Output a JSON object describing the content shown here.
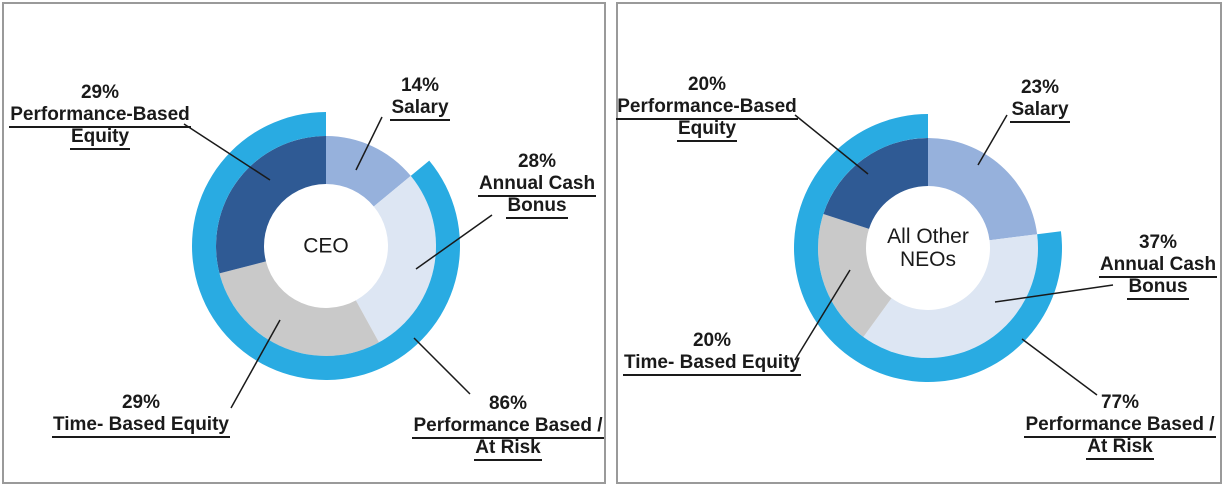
{
  "styles": {
    "label_text_color": "#1A1A1A",
    "leader_line_color": "#1A1A1A",
    "panel_border_color": "#9A9A9A",
    "background": "#FFFFFF"
  },
  "chart_data": [
    {
      "type": "pie",
      "subtype": "donut_with_outer_ring",
      "center_label": "CEO",
      "units": "%",
      "segments": [
        {
          "name": "salary",
          "value": 14,
          "pct_label": "14%",
          "label_lines": [
            "Salary"
          ],
          "color": "#96B1DC"
        },
        {
          "name": "annual-cash-bonus",
          "value": 28,
          "pct_label": "28%",
          "label_lines": [
            "Annual Cash",
            "Bonus"
          ],
          "color": "#DDE6F3"
        },
        {
          "name": "time-based-equity",
          "value": 29,
          "pct_label": "29%",
          "label_lines": [
            "Time- Based Equity"
          ],
          "color": "#C9C9C9"
        },
        {
          "name": "performance-based-equity",
          "value": 29,
          "pct_label": "29%",
          "label_lines": [
            "Performance-Based",
            "Equity"
          ],
          "color": "#2F5A94"
        }
      ],
      "outer_ring": {
        "name": "performance-based-at-risk",
        "value": 86,
        "pct_label": "86%",
        "label_lines": [
          "Performance Based /",
          "At Risk"
        ],
        "color": "#29ABE2",
        "covers_segments": [
          "annual-cash-bonus",
          "time-based-equity",
          "performance-based-equity"
        ]
      }
    },
    {
      "type": "pie",
      "subtype": "donut_with_outer_ring",
      "center_label": "All Other\nNEOs",
      "units": "%",
      "segments": [
        {
          "name": "salary",
          "value": 23,
          "pct_label": "23%",
          "label_lines": [
            "Salary"
          ],
          "color": "#96B1DC"
        },
        {
          "name": "annual-cash-bonus",
          "value": 37,
          "pct_label": "37%",
          "label_lines": [
            "Annual Cash",
            "Bonus"
          ],
          "color": "#DDE6F3"
        },
        {
          "name": "time-based-equity",
          "value": 20,
          "pct_label": "20%",
          "label_lines": [
            "Time- Based Equity"
          ],
          "color": "#C9C9C9"
        },
        {
          "name": "performance-based-equity",
          "value": 20,
          "pct_label": "20%",
          "label_lines": [
            "Performance-Based",
            "Equity"
          ],
          "color": "#2F5A94"
        }
      ],
      "outer_ring": {
        "name": "performance-based-at-risk",
        "value": 77,
        "pct_label": "77%",
        "label_lines": [
          "Performance Based /",
          "At Risk"
        ],
        "color": "#29ABE2",
        "covers_segments": [
          "annual-cash-bonus",
          "time-based-equity",
          "performance-based-equity"
        ]
      }
    }
  ]
}
